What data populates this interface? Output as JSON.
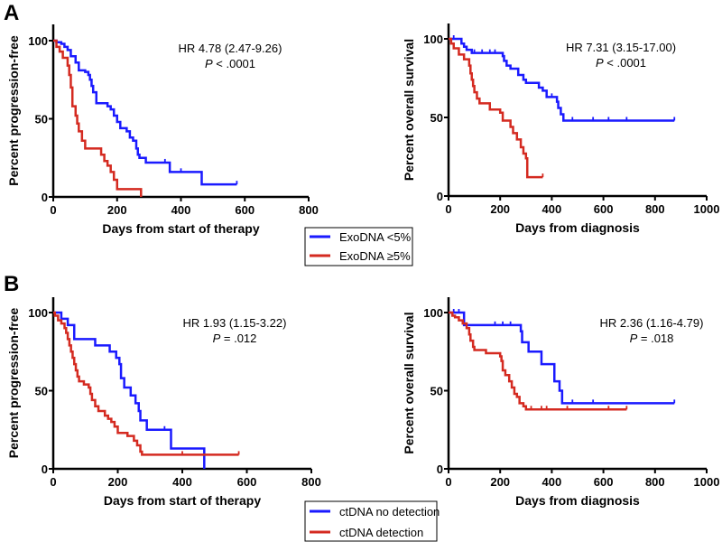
{
  "colors": {
    "blue": "#1a1aff",
    "red": "#d42a20"
  },
  "panel_labels": [
    "A",
    "B"
  ],
  "legends": [
    {
      "items": [
        "ExoDNA <5%",
        "ExoDNA ≥5%"
      ]
    },
    {
      "items": [
        "ctDNA no detection",
        "ctDNA detection"
      ]
    }
  ],
  "chart_data": [
    {
      "type": "line",
      "subtype": "kaplan-meier",
      "panel": "A",
      "xlabel": "Days from start of therapy",
      "ylabel": "Percent progression-free",
      "xlim": [
        0,
        800
      ],
      "ylim": [
        0,
        100
      ],
      "xticks": [
        0,
        200,
        400,
        600,
        800
      ],
      "yticks": [
        0,
        50,
        100
      ],
      "annotation": {
        "hr": "HR 4.78 (2.47-9.26)",
        "p_italic": "P",
        "p_rest": " < .0001"
      },
      "series": [
        {
          "name": "ExoDNA <5%",
          "color": "blue",
          "steps": [
            [
              0,
              100
            ],
            [
              10,
              99
            ],
            [
              25,
              98
            ],
            [
              35,
              96
            ],
            [
              45,
              94
            ],
            [
              55,
              90
            ],
            [
              70,
              86
            ],
            [
              80,
              81
            ],
            [
              100,
              80
            ],
            [
              110,
              78
            ],
            [
              115,
              75
            ],
            [
              120,
              71
            ],
            [
              125,
              67
            ],
            [
              135,
              60
            ],
            [
              170,
              58
            ],
            [
              180,
              56
            ],
            [
              190,
              52
            ],
            [
              200,
              48
            ],
            [
              210,
              44
            ],
            [
              230,
              42
            ],
            [
              240,
              38
            ],
            [
              250,
              36
            ],
            [
              260,
              31
            ],
            [
              265,
              27
            ],
            [
              270,
              25
            ],
            [
              290,
              22
            ],
            [
              365,
              16
            ],
            [
              465,
              8
            ]
          ],
          "end": 575,
          "censored": [
            350,
            400,
            575
          ]
        },
        {
          "name": "ExoDNA ≥5%",
          "color": "red",
          "steps": [
            [
              0,
              100
            ],
            [
              10,
              96
            ],
            [
              20,
              93
            ],
            [
              30,
              89
            ],
            [
              45,
              84
            ],
            [
              50,
              78
            ],
            [
              55,
              70
            ],
            [
              60,
              58
            ],
            [
              70,
              52
            ],
            [
              75,
              47
            ],
            [
              80,
              42
            ],
            [
              90,
              36
            ],
            [
              100,
              31
            ],
            [
              150,
              27
            ],
            [
              160,
              23
            ],
            [
              170,
              20
            ],
            [
              180,
              16
            ],
            [
              190,
              11
            ],
            [
              200,
              5
            ],
            [
              275,
              0
            ]
          ],
          "end": 275,
          "censored": []
        }
      ]
    },
    {
      "type": "line",
      "subtype": "kaplan-meier",
      "panel": "A",
      "xlabel": "Days from diagnosis",
      "ylabel": "Percent overall survival",
      "xlim": [
        0,
        1000
      ],
      "ylim": [
        0,
        100
      ],
      "xticks": [
        0,
        200,
        400,
        600,
        800,
        1000
      ],
      "yticks": [
        0,
        50,
        100
      ],
      "annotation": {
        "hr": "HR 7.31 (3.15-17.00)",
        "p_italic": "P",
        "p_rest": " < .0001"
      },
      "series": [
        {
          "name": "ExoDNA <5%",
          "color": "blue",
          "steps": [
            [
              0,
              100
            ],
            [
              50,
              97
            ],
            [
              60,
              95
            ],
            [
              70,
              93
            ],
            [
              90,
              91
            ],
            [
              210,
              89
            ],
            [
              215,
              86
            ],
            [
              225,
              83
            ],
            [
              240,
              81
            ],
            [
              270,
              77
            ],
            [
              290,
              74
            ],
            [
              300,
              72
            ],
            [
              350,
              69
            ],
            [
              365,
              67
            ],
            [
              380,
              63
            ],
            [
              420,
              60
            ],
            [
              425,
              56
            ],
            [
              435,
              52
            ],
            [
              445,
              48
            ]
          ],
          "end": 875,
          "censored": [
            20,
            100,
            130,
            160,
            180,
            400,
            480,
            560,
            620,
            690,
            875
          ]
        },
        {
          "name": "ExoDNA ≥5%",
          "color": "red",
          "steps": [
            [
              0,
              100
            ],
            [
              10,
              97
            ],
            [
              20,
              94
            ],
            [
              40,
              90
            ],
            [
              60,
              87
            ],
            [
              80,
              83
            ],
            [
              85,
              78
            ],
            [
              90,
              74
            ],
            [
              95,
              70
            ],
            [
              100,
              66
            ],
            [
              110,
              62
            ],
            [
              120,
              59
            ],
            [
              160,
              55
            ],
            [
              200,
              53
            ],
            [
              210,
              48
            ],
            [
              240,
              44
            ],
            [
              250,
              40
            ],
            [
              265,
              36
            ],
            [
              280,
              31
            ],
            [
              290,
              27
            ],
            [
              300,
              24
            ],
            [
              305,
              12
            ]
          ],
          "end": 365,
          "censored": [
            365
          ]
        }
      ]
    },
    {
      "type": "line",
      "subtype": "kaplan-meier",
      "panel": "B",
      "xlabel": "Days from start of therapy",
      "ylabel": "Percent progression-free",
      "xlim": [
        0,
        800
      ],
      "ylim": [
        0,
        100
      ],
      "xticks": [
        0,
        200,
        400,
        600,
        800
      ],
      "yticks": [
        0,
        50,
        100
      ],
      "annotation": {
        "hr": "HR 1.93 (1.15-3.22)",
        "p_italic": "P",
        "p_rest": " = .012"
      },
      "series": [
        {
          "name": "ctDNA no detection",
          "color": "blue",
          "steps": [
            [
              0,
              100
            ],
            [
              25,
              96
            ],
            [
              45,
              92
            ],
            [
              65,
              83
            ],
            [
              130,
              79
            ],
            [
              175,
              75
            ],
            [
              195,
              71
            ],
            [
              205,
              67
            ],
            [
              210,
              58
            ],
            [
              220,
              52
            ],
            [
              240,
              47
            ],
            [
              255,
              42
            ],
            [
              265,
              37
            ],
            [
              270,
              31
            ],
            [
              290,
              25
            ],
            [
              365,
              13
            ],
            [
              468,
              0
            ]
          ],
          "end": 468,
          "censored": [
            345
          ]
        },
        {
          "name": "ctDNA detection",
          "color": "red",
          "steps": [
            [
              0,
              100
            ],
            [
              5,
              98
            ],
            [
              15,
              95
            ],
            [
              25,
              93
            ],
            [
              35,
              90
            ],
            [
              40,
              87
            ],
            [
              45,
              83
            ],
            [
              50,
              79
            ],
            [
              55,
              75
            ],
            [
              60,
              71
            ],
            [
              65,
              67
            ],
            [
              70,
              63
            ],
            [
              75,
              59
            ],
            [
              80,
              56
            ],
            [
              95,
              54
            ],
            [
              110,
              52
            ],
            [
              115,
              48
            ],
            [
              120,
              44
            ],
            [
              130,
              40
            ],
            [
              140,
              37
            ],
            [
              160,
              34
            ],
            [
              170,
              32
            ],
            [
              180,
              30
            ],
            [
              190,
              27
            ],
            [
              200,
              23
            ],
            [
              230,
              21
            ],
            [
              250,
              18
            ],
            [
              260,
              15
            ],
            [
              270,
              11
            ],
            [
              275,
              9
            ]
          ],
          "end": 575,
          "censored": [
            230,
            400,
            575
          ]
        }
      ]
    },
    {
      "type": "line",
      "subtype": "kaplan-meier",
      "panel": "B",
      "xlabel": "Days from diagnosis",
      "ylabel": "Percent overall survival",
      "xlim": [
        0,
        1000
      ],
      "ylim": [
        0,
        100
      ],
      "xticks": [
        0,
        200,
        400,
        600,
        800,
        1000
      ],
      "yticks": [
        0,
        50,
        100
      ],
      "annotation": {
        "hr": "HR 2.36 (1.16-4.79)",
        "p_italic": "P",
        "p_rest": " = .018"
      },
      "series": [
        {
          "name": "ctDNA no detection",
          "color": "blue",
          "steps": [
            [
              0,
              100
            ],
            [
              60,
              92
            ],
            [
              280,
              88
            ],
            [
              285,
              81
            ],
            [
              310,
              75
            ],
            [
              360,
              67
            ],
            [
              410,
              56
            ],
            [
              430,
              50
            ],
            [
              440,
              42
            ]
          ],
          "end": 875,
          "censored": [
            20,
            40,
            180,
            210,
            240,
            480,
            560,
            875
          ]
        },
        {
          "name": "ctDNA detection",
          "color": "red",
          "steps": [
            [
              0,
              100
            ],
            [
              15,
              98
            ],
            [
              25,
              97
            ],
            [
              40,
              95
            ],
            [
              55,
              93
            ],
            [
              70,
              90
            ],
            [
              80,
              86
            ],
            [
              85,
              82
            ],
            [
              95,
              78
            ],
            [
              100,
              76
            ],
            [
              145,
              74
            ],
            [
              200,
              72
            ],
            [
              205,
              69
            ],
            [
              210,
              63
            ],
            [
              220,
              60
            ],
            [
              235,
              56
            ],
            [
              245,
              52
            ],
            [
              255,
              48
            ],
            [
              265,
              46
            ],
            [
              275,
              42
            ],
            [
              290,
              40
            ],
            [
              300,
              38
            ]
          ],
          "end": 690,
          "censored": [
            320,
            360,
            380,
            460,
            620,
            690
          ]
        }
      ]
    }
  ]
}
